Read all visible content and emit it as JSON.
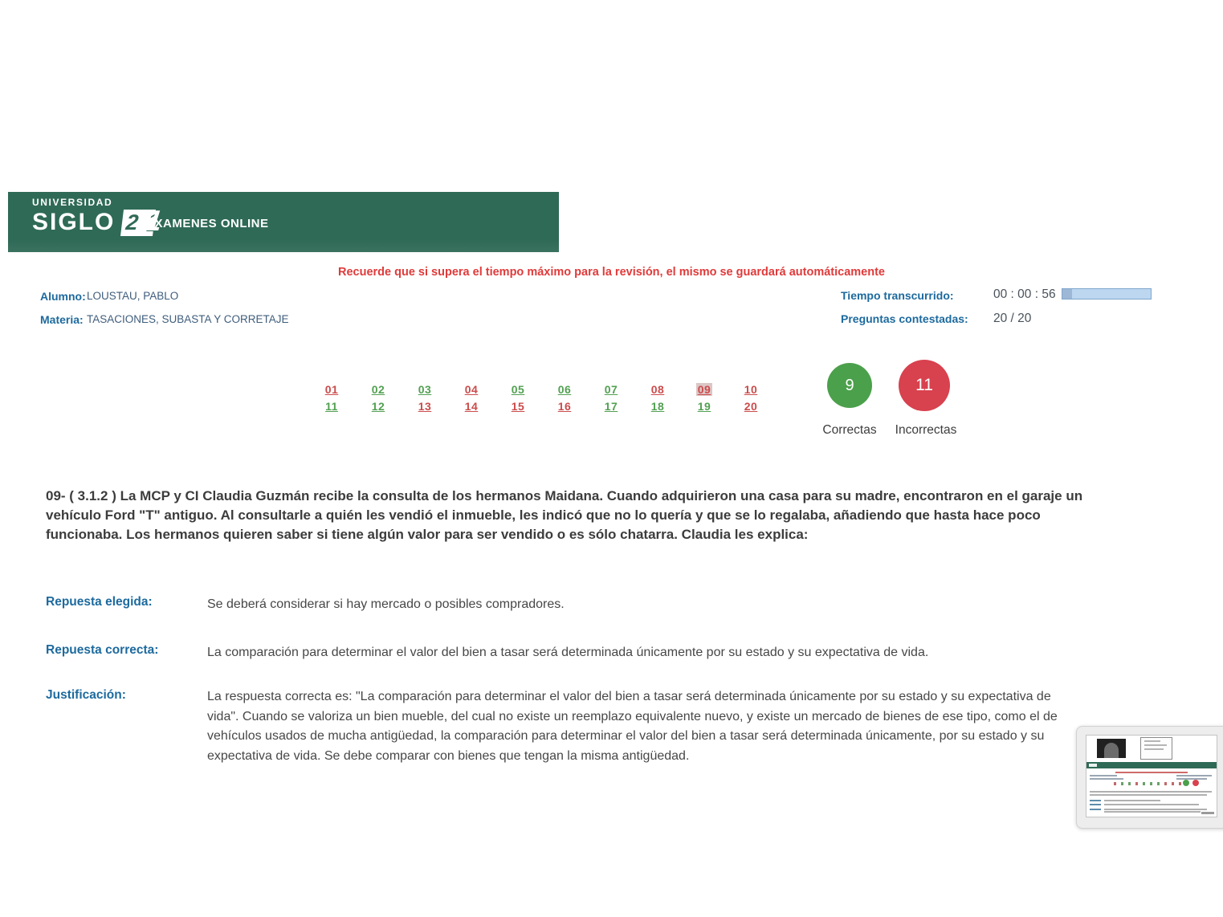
{
  "colors": {
    "header-green": "#2f6a57",
    "warning-red": "#e03a3a",
    "label-blue": "#1d6a9e",
    "value-blue": "#3f5d7c",
    "correct-green": "#52a052",
    "incorrect-red": "#cb4c4c",
    "selected-bg": "#dcc6c6",
    "circle-green": "#4ba04b",
    "circle-red": "#d8414e",
    "bar-bg": "#bdd7f1",
    "bar-border": "#7fa6cb",
    "bar-fill": "#9db7d6"
  },
  "header": {
    "logo": {
      "line1": "UNIVERSIDAD",
      "line2": "SIGLO",
      "badge_2": "2",
      "badge_1": "1"
    },
    "app_title": "EXAMENES ONLINE"
  },
  "notice": {
    "text": "Recuerde que si supera el tiempo máximo para la revisión, el mismo se guardará automáticamente"
  },
  "student": {
    "alumno_label": "Alumno:",
    "alumno_value": "LOUSTAU, PABLO",
    "materia_label": "Materia:",
    "materia_value": "TASACIONES, SUBASTA Y CORRETAJE"
  },
  "stats": {
    "tiempo_label": "Tiempo transcurrido:",
    "tiempo_value": "00 : 00 : 56",
    "timer_bar_fill_percent": 11,
    "preguntas_label": "Preguntas contestadas:",
    "preguntas_value": "20 / 20"
  },
  "question_nav": {
    "items": [
      {
        "label": "01",
        "status": "incorrect",
        "selected": false
      },
      {
        "label": "02",
        "status": "correct",
        "selected": false
      },
      {
        "label": "03",
        "status": "correct",
        "selected": false
      },
      {
        "label": "04",
        "status": "incorrect",
        "selected": false
      },
      {
        "label": "05",
        "status": "correct",
        "selected": false
      },
      {
        "label": "06",
        "status": "correct",
        "selected": false
      },
      {
        "label": "07",
        "status": "correct",
        "selected": false
      },
      {
        "label": "08",
        "status": "incorrect",
        "selected": false
      },
      {
        "label": "09",
        "status": "incorrect",
        "selected": true
      },
      {
        "label": "10",
        "status": "incorrect",
        "selected": false
      },
      {
        "label": "11",
        "status": "correct",
        "selected": false
      },
      {
        "label": "12",
        "status": "correct",
        "selected": false
      },
      {
        "label": "13",
        "status": "incorrect",
        "selected": false
      },
      {
        "label": "14",
        "status": "incorrect",
        "selected": false
      },
      {
        "label": "15",
        "status": "incorrect",
        "selected": false
      },
      {
        "label": "16",
        "status": "incorrect",
        "selected": false
      },
      {
        "label": "17",
        "status": "correct",
        "selected": false
      },
      {
        "label": "18",
        "status": "correct",
        "selected": false
      },
      {
        "label": "19",
        "status": "correct",
        "selected": false
      },
      {
        "label": "20",
        "status": "incorrect",
        "selected": false
      }
    ]
  },
  "score": {
    "correct_count": "9",
    "incorrect_count": "11",
    "correct_label": "Correctas",
    "incorrect_label": "Incorrectas"
  },
  "question": {
    "text": "09- ( 3.1.2 ) La MCP y CI Claudia Guzmán recibe la consulta de los hermanos Maidana. Cuando adquirieron una casa para su madre, encontraron en el garaje un vehículo Ford \"T\" antiguo. Al consultarle a quién les vendió el inmueble, les indicó que no lo quería y que se lo regalaba, añadiendo que hasta hace poco funcionaba. Los hermanos quieren saber si tiene algún valor para ser vendido o es sólo chatarra. Claudia les explica:"
  },
  "answers": {
    "elegida_label": "Repuesta elegida:",
    "elegida_value": "Se deberá considerar si hay mercado o posibles compradores.",
    "correcta_label": "Repuesta correcta:",
    "correcta_value": "La comparación para determinar el valor del bien a tasar será determinada únicamente por su estado y su expectativa de vida.",
    "justificacion_label": "Justificación:",
    "justificacion_value": "La respuesta correcta es: \"La comparación para determinar el valor del bien a tasar será determinada únicamente por su estado y su expectativa de vida\". Cuando se valoriza un bien mueble, del cual no existe un reemplazo equivalente nuevo, y existe un mercado de bienes de ese tipo, como el de vehículos usados de mucha antigüedad, la comparación para determinar el valor del bien a tasar será determinada únicamente, por su estado y su expectativa de vida. Se debe comparar con bienes que tengan la misma antigüedad."
  }
}
